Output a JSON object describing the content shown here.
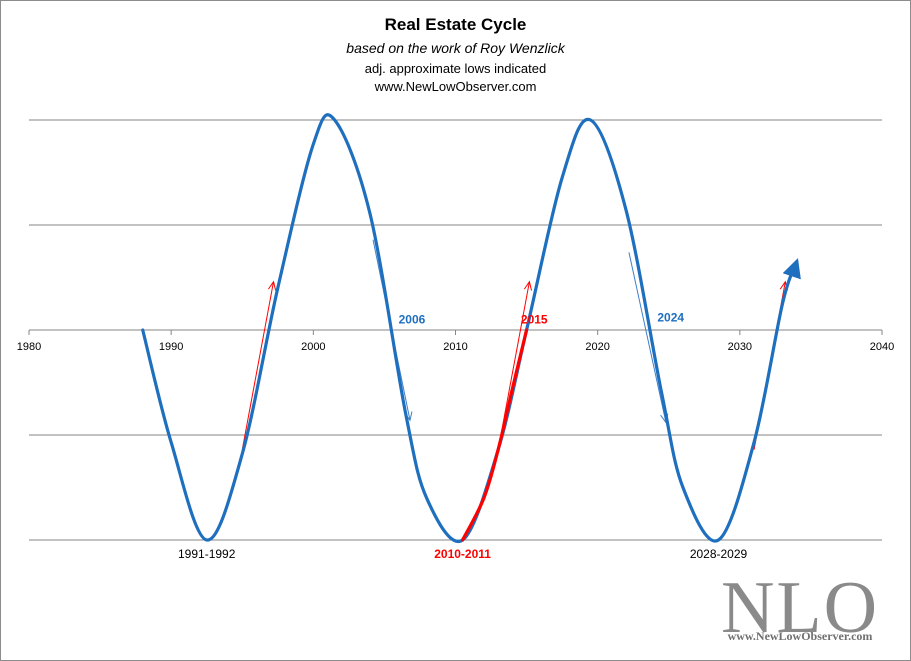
{
  "chart_data": {
    "type": "line",
    "title": "Real Estate  Cycle",
    "subtitle": "based on the work of Roy Wenzlick",
    "subtitle2": "adj. approximate lows indicated",
    "website": "www.NewLowObserver.com",
    "xlim": [
      1980,
      2040
    ],
    "x_ticks": [
      "1980",
      "1990",
      "2000",
      "2010",
      "2020",
      "2030",
      "2040"
    ],
    "ylim": [
      -2,
      2
    ],
    "grid": true,
    "series": [
      {
        "color": "#1f6fbf",
        "x": [
          1988,
          1990,
          1992.5,
          1995,
          1997.5,
          2000,
          2001.5,
          2004,
          2006.5,
          2008,
          2010.5,
          2013,
          2015,
          2017.5,
          2019.5,
          2022,
          2024.5,
          2026,
          2028.5,
          2031,
          2033,
          2034
        ],
        "y": [
          0,
          -1.07,
          -2,
          -1.18,
          0.4,
          1.77,
          2,
          1.1,
          -0.8,
          -1.61,
          -2,
          -1.14,
          0,
          1.45,
          2,
          1.14,
          -0.6,
          -1.5,
          -2,
          -1.07,
          0.25,
          0.65
        ]
      },
      {
        "color": "#ff0000",
        "x": [
          2010.5,
          2012,
          2013,
          2014,
          2015
        ],
        "y": [
          -2,
          -1.6,
          -1.14,
          -0.56,
          0
        ]
      }
    ],
    "low_labels": [
      {
        "text": "1991-1992",
        "color": "#000000"
      },
      {
        "text": "2010-2011",
        "color": "#ff0000"
      },
      {
        "text": "2028-2029",
        "color": "#000000"
      }
    ],
    "year_labels": [
      {
        "text": "2006",
        "color": "#1f6fbf"
      },
      {
        "text": "2015",
        "color": "#ff0000"
      },
      {
        "text": "2024",
        "color": "#1f6fbf"
      }
    ],
    "up_arrow_color": "#ff0000",
    "down_arrow_color": "#3d7ec9"
  },
  "logo": {
    "text": "NLO",
    "url": "www.NewLowObserver.com"
  }
}
